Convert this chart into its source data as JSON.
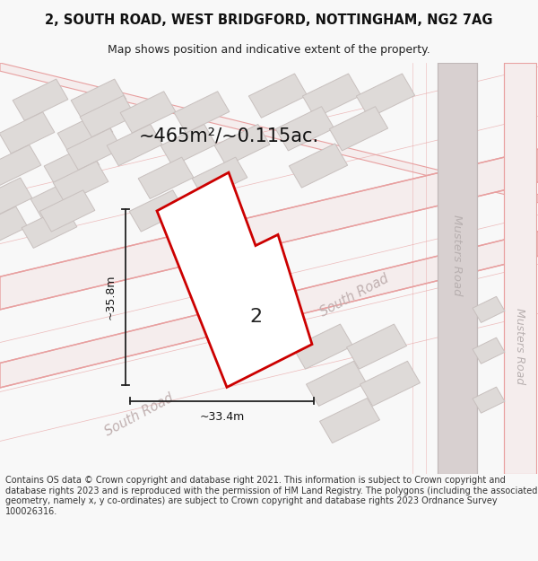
{
  "title_line1": "2, SOUTH ROAD, WEST BRIDGFORD, NOTTINGHAM, NG2 7AG",
  "title_line2": "Map shows position and indicative extent of the property.",
  "area_text": "~465m²/~0.115ac.",
  "label_number": "2",
  "dim_height": "~35.8m",
  "dim_width": "~33.4m",
  "road_label_south1": "South Road",
  "road_label_south2": "South Road",
  "road_label_musters1": "Musters Road",
  "road_label_musters2": "Musters Road",
  "footer_text": "Contains OS data © Crown copyright and database right 2021. This information is subject to Crown copyright and database rights 2023 and is reproduced with the permission of HM Land Registry. The polygons (including the associated geometry, namely x, y co-ordinates) are subject to Crown copyright and database rights 2023 Ordnance Survey 100026316.",
  "bg_color": "#f8f8f8",
  "map_bg": "#f2eeee",
  "building_color": "#dedad8",
  "building_edge": "#c8c0be",
  "road_line_color": "#e8a0a0",
  "road_fill_color": "#f5eded",
  "highlight_color": "#cc0000",
  "highlight_fill": "#ffffff",
  "musters_road_color": "#d8d0d0",
  "musters_road_edge": "#c0b8b8"
}
